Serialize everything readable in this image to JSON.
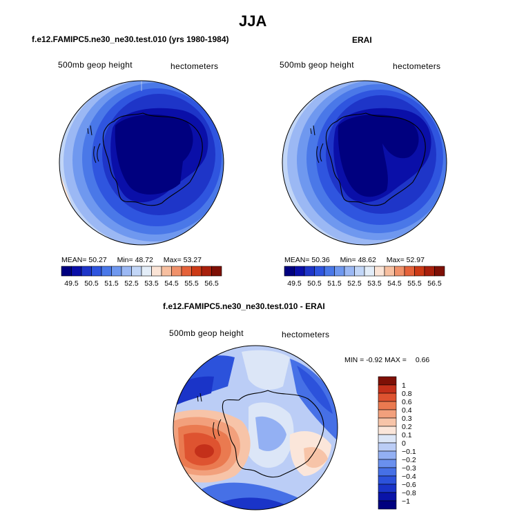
{
  "figure_title": "JJA",
  "colors": {
    "abs_scale": [
      "#00007f",
      "#0a0fa8",
      "#1e35c8",
      "#2f55df",
      "#4a78e8",
      "#6f98ef",
      "#9bb8f4",
      "#c2d6f7",
      "#e3edf8",
      "#fbe4d6",
      "#f7bfa0",
      "#f0916a",
      "#e5623a",
      "#cc3a16",
      "#a8200c",
      "#7e1006"
    ],
    "diff_scale": [
      "#00007f",
      "#0a14a8",
      "#1a34c8",
      "#2c52db",
      "#4670e6",
      "#6a90ee",
      "#93b0f3",
      "#bbcdf6",
      "#dce6f7",
      "#fbe6da",
      "#f7c4a8",
      "#f2a07c",
      "#ea7a50",
      "#de5330",
      "#c4301a",
      "#7e1006"
    ]
  },
  "chart_data": [
    {
      "type": "heatmap",
      "projection": "south-polar-stereographic",
      "title": "f.e12.FAMIPC5.ne30_ne30.test.010 (yrs 1980-1984)",
      "variable_label": "500mb geop height",
      "units_label": "hectometers",
      "stats": {
        "mean_label": "MEAN=",
        "mean": "50.27",
        "min_label": "Min=",
        "min": "48.72",
        "max_label": "Max=",
        "max": "53.27"
      },
      "colorbar": {
        "orientation": "horizontal",
        "levels": [
          "49.5",
          "50.5",
          "51.5",
          "52.5",
          "53.5",
          "54.5",
          "55.5",
          "56.5"
        ],
        "n_colors": 16
      }
    },
    {
      "type": "heatmap",
      "projection": "south-polar-stereographic",
      "title": "ERAI",
      "variable_label": "500mb geop height",
      "units_label": "hectometers",
      "stats": {
        "mean_label": "MEAN=",
        "mean": "50.36",
        "min_label": "Min=",
        "min": "48.62",
        "max_label": "Max=",
        "max": "52.97"
      },
      "colorbar": {
        "orientation": "horizontal",
        "levels": [
          "49.5",
          "50.5",
          "51.5",
          "52.5",
          "53.5",
          "54.5",
          "55.5",
          "56.5"
        ],
        "n_colors": 16
      }
    },
    {
      "type": "heatmap",
      "projection": "south-polar-stereographic",
      "title": "f.e12.FAMIPC5.ne30_ne30.test.010 - ERAI",
      "variable_label": "500mb geop height",
      "units_label": "hectometers",
      "stats": {
        "min_label": "MIN =",
        "min": "-0.92",
        "max_label": "MAX =",
        "max": "0.66"
      },
      "colorbar": {
        "orientation": "vertical",
        "levels": [
          "1",
          "0.8",
          "0.6",
          "0.4",
          "0.3",
          "0.2",
          "0.1",
          "0",
          "−0.1",
          "−0.2",
          "−0.3",
          "−0.4",
          "−0.6",
          "−0.8",
          "−1"
        ],
        "n_colors": 16
      }
    }
  ]
}
